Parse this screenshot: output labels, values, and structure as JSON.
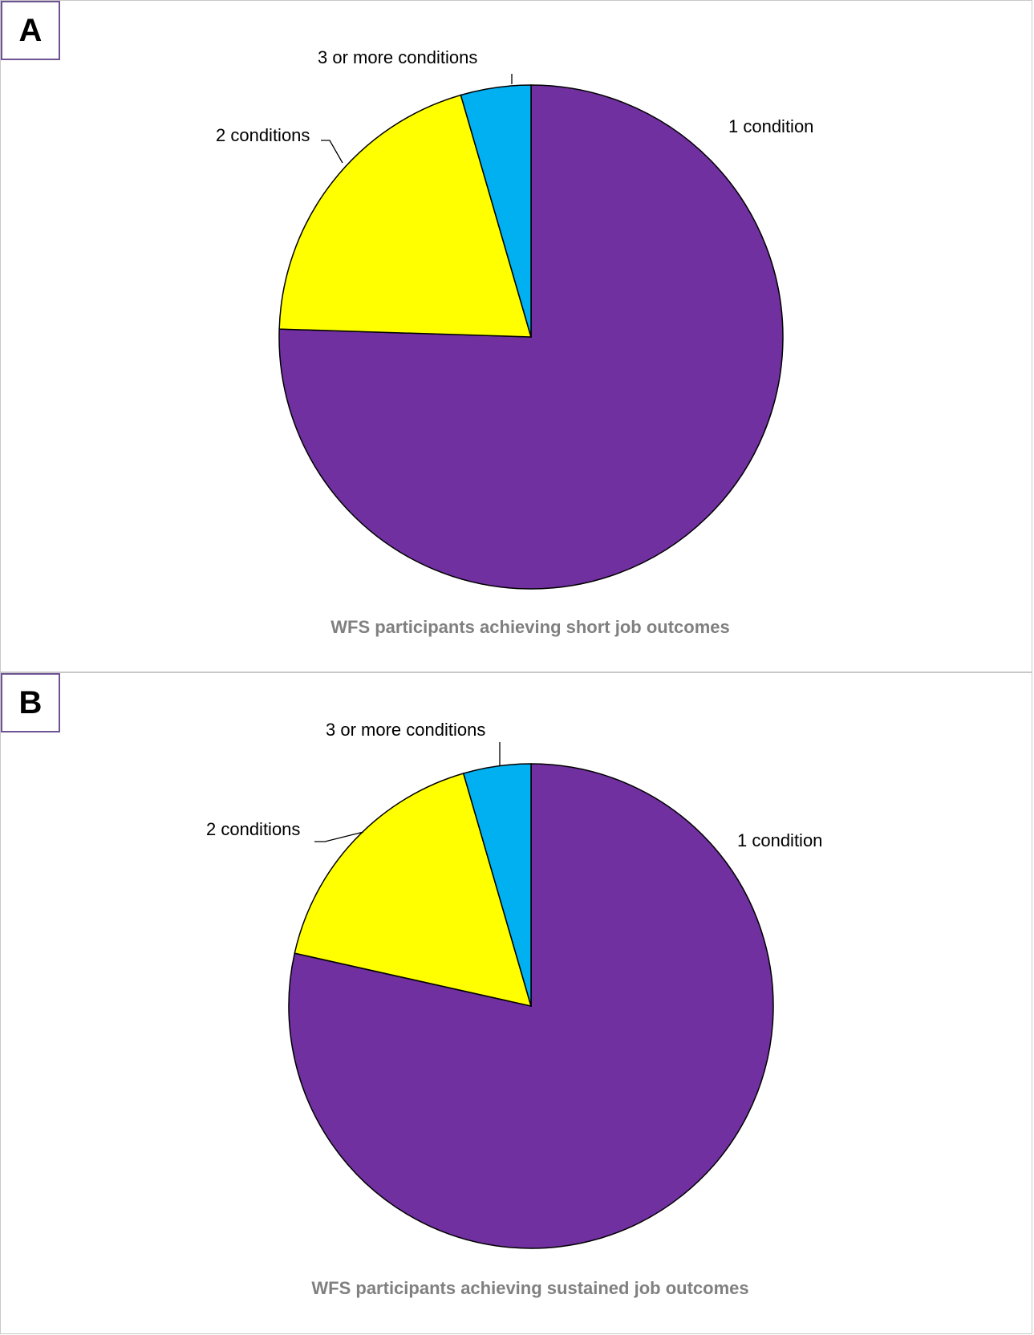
{
  "colors": {
    "one_condition": "#7030A0",
    "two_conditions": "#FFFF00",
    "three_or_more": "#00B0F0"
  },
  "chart_data": [
    {
      "panel": "A",
      "type": "pie",
      "title": "WFS participants achieving short job outcomes",
      "slices": [
        {
          "label": "1 condition",
          "value": 75.5,
          "color": "#7030A0"
        },
        {
          "label": "2 conditions",
          "value": 20.0,
          "color": "#FFFF00"
        },
        {
          "label": "3 or more conditions",
          "value": 4.5,
          "color": "#00B0F0"
        }
      ]
    },
    {
      "panel": "B",
      "type": "pie",
      "title": "WFS participants achieving sustained job outcomes",
      "slices": [
        {
          "label": "1 condition",
          "value": 78.5,
          "color": "#7030A0"
        },
        {
          "label": "2 conditions",
          "value": 17.0,
          "color": "#FFFF00"
        },
        {
          "label": "3 or more conditions",
          "value": 4.5,
          "color": "#00B0F0"
        }
      ]
    }
  ]
}
